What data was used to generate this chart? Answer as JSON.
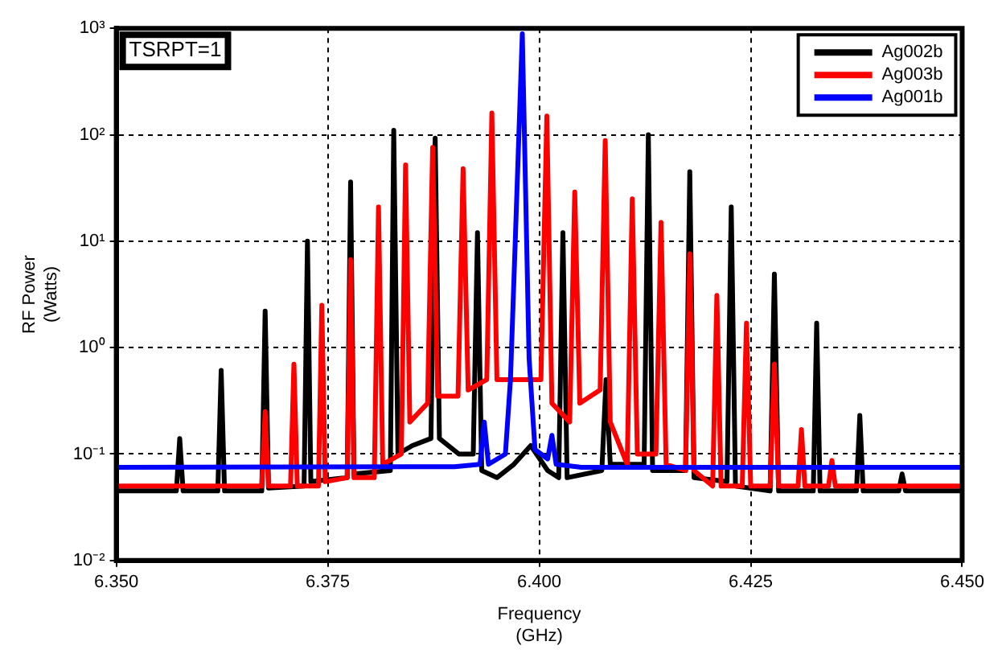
{
  "chart_data": {
    "type": "line",
    "xlabel": "Frequency\n(GHz)",
    "ylabel": "RF Power\n(Watts)",
    "log": "y",
    "grid": true,
    "legend": "top right",
    "marker": "none",
    "line_style": "solid",
    "annotations": [
      "TSRPT=1"
    ],
    "xlim": [
      6.35,
      6.45
    ],
    "xticks": [
      {
        "value": 6.35,
        "label": "6.350"
      },
      {
        "value": 6.375,
        "label": "6.375"
      },
      {
        "value": 6.4,
        "label": "6.400"
      },
      {
        "value": 6.425,
        "label": "6.425"
      },
      {
        "value": 6.45,
        "label": "6.450"
      }
    ],
    "ylim": [
      0.01,
      1000
    ],
    "yticks": [
      {
        "value": 0.01,
        "label": "10⁻²"
      },
      {
        "value": 0.1,
        "label": "10⁻¹"
      },
      {
        "value": 1,
        "label": "10⁰"
      },
      {
        "value": 10,
        "label": "10¹"
      },
      {
        "value": 100,
        "label": "10²"
      },
      {
        "value": 1000,
        "label": "10³"
      }
    ],
    "series": [
      {
        "name": "Ag002b",
        "color": "#000000",
        "x": [
          6.35,
          6.3571,
          6.3575,
          6.3579,
          6.362,
          6.3624,
          6.3628,
          6.3672,
          6.3676,
          6.368,
          6.3722,
          6.3726,
          6.373,
          6.3773,
          6.3777,
          6.3781,
          6.3824,
          6.3828,
          6.3833,
          6.385,
          6.3872,
          6.3877,
          6.3882,
          6.3905,
          6.3922,
          6.3927,
          6.3932,
          6.395,
          6.397,
          6.399,
          6.401,
          6.4023,
          6.4028,
          6.4033,
          6.4074,
          6.4079,
          6.4084,
          6.4124,
          6.4129,
          6.4134,
          6.4173,
          6.4178,
          6.4183,
          6.4222,
          6.4227,
          6.4232,
          6.4273,
          6.4278,
          6.4283,
          6.4324,
          6.4328,
          6.4332,
          6.4375,
          6.4379,
          6.4383,
          6.4425,
          6.4429,
          6.4433,
          6.45
        ],
        "values": [
          0.045,
          0.045,
          0.14,
          0.045,
          0.045,
          0.61,
          0.045,
          0.045,
          2.2,
          0.048,
          0.05,
          10,
          0.055,
          0.06,
          36,
          0.065,
          0.07,
          110,
          0.1,
          0.12,
          0.14,
          93,
          0.14,
          0.1,
          0.1,
          12,
          0.07,
          0.06,
          0.08,
          0.12,
          0.07,
          0.06,
          12,
          0.06,
          0.07,
          0.5,
          0.08,
          0.08,
          100,
          0.07,
          0.07,
          45,
          0.06,
          0.055,
          21,
          0.05,
          0.045,
          4.9,
          0.045,
          0.045,
          1.7,
          0.045,
          0.045,
          0.23,
          0.045,
          0.045,
          0.065,
          0.045,
          0.045
        ]
      },
      {
        "name": "Ag003b",
        "color": "#ff0000",
        "x": [
          6.35,
          6.3672,
          6.3676,
          6.368,
          6.3706,
          6.371,
          6.3714,
          6.3739,
          6.3743,
          6.3747,
          6.3773,
          6.3777,
          6.3781,
          6.3805,
          6.381,
          6.3815,
          6.3837,
          6.3842,
          6.3847,
          6.3868,
          6.3874,
          6.388,
          6.3904,
          6.391,
          6.3916,
          6.3938,
          6.3944,
          6.395,
          6.3975,
          6.4002,
          6.4009,
          6.4015,
          6.4036,
          6.4042,
          6.4048,
          6.4072,
          6.4078,
          6.4084,
          6.4104,
          6.411,
          6.4116,
          6.4138,
          6.4144,
          6.415,
          6.4173,
          6.4178,
          6.4183,
          6.4205,
          6.421,
          6.4215,
          6.424,
          6.4245,
          6.425,
          6.4273,
          6.4278,
          6.4283,
          6.4306,
          6.431,
          6.4314,
          6.4342,
          6.4346,
          6.435,
          6.45
        ],
        "values": [
          0.05,
          0.05,
          0.25,
          0.05,
          0.05,
          0.7,
          0.05,
          0.05,
          2.5,
          0.055,
          0.06,
          6.7,
          0.06,
          0.06,
          21,
          0.08,
          0.1,
          52,
          0.2,
          0.3,
          76,
          0.35,
          0.35,
          48,
          0.4,
          0.5,
          160,
          0.5,
          0.5,
          0.5,
          150,
          0.3,
          0.2,
          29,
          0.3,
          0.4,
          88,
          0.2,
          0.08,
          25,
          0.1,
          0.1,
          15,
          0.08,
          0.07,
          7.6,
          0.07,
          0.05,
          3.1,
          0.05,
          0.05,
          1.7,
          0.05,
          0.05,
          0.7,
          0.05,
          0.05,
          0.17,
          0.05,
          0.05,
          0.087,
          0.05,
          0.05
        ]
      },
      {
        "name": "Ag001b",
        "color": "#0000ff",
        "x": [
          6.35,
          6.39,
          6.393,
          6.3935,
          6.394,
          6.396,
          6.3966,
          6.3972,
          6.398,
          6.3988,
          6.3995,
          6.401,
          6.4015,
          6.402,
          6.405,
          6.45
        ],
        "values": [
          0.075,
          0.076,
          0.08,
          0.2,
          0.08,
          0.1,
          0.5,
          12,
          890,
          0.8,
          0.11,
          0.09,
          0.15,
          0.08,
          0.075,
          0.075
        ]
      }
    ]
  }
}
